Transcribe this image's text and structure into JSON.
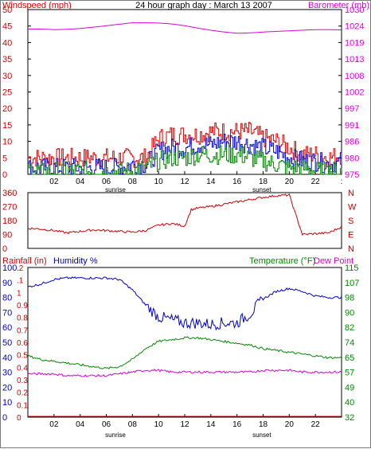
{
  "colors": {
    "red": "#dd0000",
    "blue": "#0000cc",
    "green": "#008800",
    "magenta": "#dd00dd",
    "dark_red": "#cc0000"
  },
  "chart_data": [
    {
      "type": "line",
      "title": "24 hour graph day : March 13 2007",
      "ylabel_left": "Windspeed (mph)",
      "ylabel_right": "Barometer (mb)",
      "x_ticks": [
        "02",
        "04",
        "06",
        "08",
        "10",
        "12",
        "14",
        "16",
        "18",
        "20",
        "22",
        ":"
      ],
      "sunrise_label": "sunrise",
      "sunset_label": "sunset",
      "y_left_ticks": [
        "50",
        "45",
        "40",
        "35",
        "30",
        "25",
        "20",
        "15",
        "10",
        "5",
        "0"
      ],
      "y_right_ticks": [
        "1030",
        "1024",
        "1019",
        "1013",
        "1008",
        "1002",
        "997",
        "991",
        "986",
        "980",
        "975"
      ],
      "ylim_left": [
        0,
        50
      ],
      "ylim_right": [
        975,
        1030
      ],
      "x": [
        0,
        1,
        2,
        3,
        4,
        5,
        6,
        7,
        8,
        9,
        10,
        11,
        12,
        13,
        14,
        15,
        16,
        17,
        18,
        19,
        20,
        21,
        22,
        23,
        24
      ],
      "series": [
        {
          "color": "red",
          "axis": "left",
          "values": [
            5,
            5,
            5,
            5,
            5,
            5,
            5,
            5,
            5,
            5,
            11,
            12,
            12,
            12,
            13,
            13,
            13,
            13,
            11,
            10,
            8,
            6,
            6,
            5,
            6
          ]
        },
        {
          "color": "blue",
          "axis": "left",
          "values": [
            2,
            2,
            2,
            2,
            2,
            2,
            2,
            2,
            3,
            3,
            7,
            8,
            8,
            9,
            9,
            10,
            10,
            9,
            8,
            7,
            5,
            4,
            4,
            3,
            4
          ]
        },
        {
          "color": "green",
          "axis": "left",
          "values": [
            1,
            1,
            1,
            1,
            1,
            1,
            1,
            1,
            1,
            2,
            4,
            5,
            5,
            6,
            6,
            6,
            6,
            5,
            4,
            3,
            2,
            2,
            1,
            1,
            1
          ]
        },
        {
          "color": "magenta",
          "axis": "right",
          "values": [
            1023.5,
            1023.5,
            1023.3,
            1023.4,
            1023.7,
            1024.1,
            1024.6,
            1025.1,
            1025.6,
            1025.6,
            1025.5,
            1025.2,
            1024.6,
            1023.8,
            1023.1,
            1022.5,
            1022.1,
            1022.2,
            1022.5,
            1022.7,
            1022.9,
            1023.1,
            1023.3,
            1023.3,
            1023.2
          ]
        }
      ]
    },
    {
      "type": "line",
      "ylabel_left_ticks": [
        "360",
        "270",
        "180",
        "90",
        "0"
      ],
      "ylabel_right_ticks": [
        "N",
        "W",
        "S",
        "E",
        "N"
      ],
      "ylim": [
        0,
        360
      ],
      "series": [
        {
          "name": "Wind direction",
          "color": "dark_red",
          "x": [
            0,
            1,
            2,
            3,
            4,
            5,
            6,
            7,
            8,
            9,
            10,
            11,
            12,
            12.5,
            13,
            14,
            15,
            16,
            17,
            18,
            19,
            20,
            21,
            22,
            23,
            24
          ],
          "values": [
            130,
            125,
            115,
            100,
            110,
            120,
            115,
            110,
            105,
            115,
            150,
            160,
            145,
            250,
            260,
            270,
            285,
            300,
            315,
            330,
            340,
            345,
            90,
            95,
            100,
            140
          ]
        }
      ]
    },
    {
      "type": "line",
      "ylabel_left": "Rainfall (in)",
      "ylabel_mid": "Humidity %",
      "ylabel_right": "Temperature (°F)",
      "ylabel_right2": "Dew Point",
      "rain_ticks": [
        ".2",
        ".1",
        "1",
        "0.9",
        "0.8",
        "0.7",
        "0.6",
        "0.5",
        "0.4",
        "0.3",
        "0.2",
        "0.1",
        "0"
      ],
      "humidity_ticks": [
        "100",
        "90",
        "80",
        "70",
        "60",
        "50",
        "40",
        "30",
        "20",
        "10",
        "0"
      ],
      "temp_ticks": [
        "115",
        "107",
        "98",
        "90",
        "82",
        "74",
        "65",
        "57",
        "49",
        "40",
        "32"
      ],
      "ylim_humidity": [
        0,
        100
      ],
      "ylim_temp": [
        32,
        115
      ],
      "x_ticks": [
        "02",
        "04",
        "06",
        "08",
        "10",
        "12",
        "14",
        "16",
        "18",
        "20",
        "22"
      ],
      "sunrise_label": "sunrise",
      "sunset_label": "sunset",
      "x": [
        0,
        1,
        2,
        3,
        4,
        5,
        6,
        7,
        8,
        9,
        10,
        11,
        12,
        13,
        14,
        15,
        16,
        17,
        18,
        19,
        20,
        21,
        22,
        23,
        24
      ],
      "series": [
        {
          "color": "blue",
          "axis": "humidity",
          "values": [
            87,
            89,
            92,
            93,
            93,
            93,
            93,
            92,
            85,
            75,
            67,
            65,
            63,
            63,
            62,
            63,
            63,
            69,
            79,
            84,
            86,
            84,
            81,
            80,
            80
          ]
        },
        {
          "color": "green",
          "axis": "temp",
          "values": [
            66,
            64,
            63,
            62,
            61,
            60,
            59,
            60,
            64,
            70,
            74,
            75,
            76,
            76,
            75,
            74,
            73,
            72,
            70,
            69,
            68,
            67,
            66,
            65,
            65
          ]
        },
        {
          "color": "magenta",
          "axis": "temp",
          "values": [
            56,
            56,
            56,
            55,
            55,
            55,
            55,
            56,
            57,
            58,
            58,
            57,
            57,
            57,
            57,
            57,
            57,
            57,
            58,
            58,
            58,
            57,
            57,
            57,
            57
          ]
        },
        {
          "color": "red",
          "axis": "rain",
          "values": [
            0,
            0,
            0,
            0,
            0,
            0,
            0,
            0,
            0,
            0,
            0,
            0,
            0,
            0,
            0,
            0,
            0,
            0,
            0,
            0,
            0,
            0,
            0,
            0,
            0
          ]
        }
      ]
    }
  ]
}
